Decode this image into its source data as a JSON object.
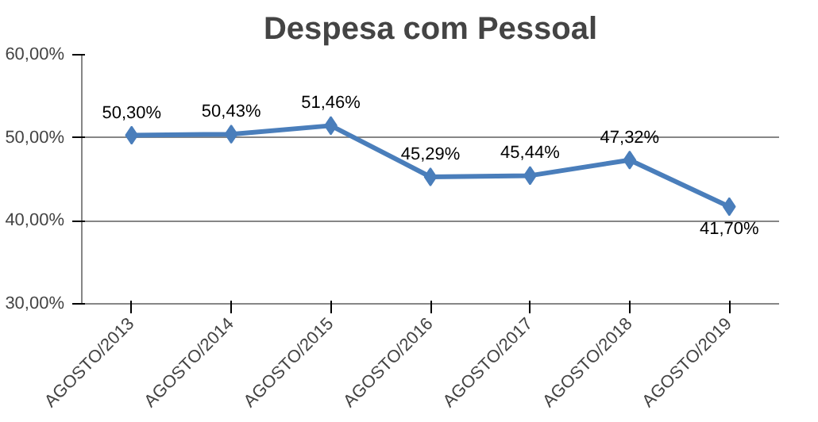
{
  "chart_data": {
    "type": "line",
    "title": "Despesa com Pessoal",
    "categories": [
      "AGOSTO/2013",
      "AGOSTO/2014",
      "AGOSTO/2015",
      "AGOSTO/2016",
      "AGOSTO/2017",
      "AGOSTO/2018",
      "AGOSTO/2019"
    ],
    "series": [
      {
        "color": "#4a7ebb",
        "values": [
          50.3,
          50.43,
          51.46,
          45.29,
          45.44,
          47.32,
          41.7
        ],
        "value_labels": [
          "50,30%",
          "50,43%",
          "51,46%",
          "45,29%",
          "45,44%",
          "47,32%",
          "41,70%"
        ]
      }
    ],
    "ylim": [
      30,
      60
    ],
    "yticks": [
      {
        "value": 30,
        "label": "30,00%"
      },
      {
        "value": 40,
        "label": "40,00%"
      },
      {
        "value": 50,
        "label": "50,00%"
      },
      {
        "value": 60,
        "label": "60,00%"
      }
    ],
    "grid": "y",
    "marker": "diamond",
    "line_style": "solid"
  }
}
